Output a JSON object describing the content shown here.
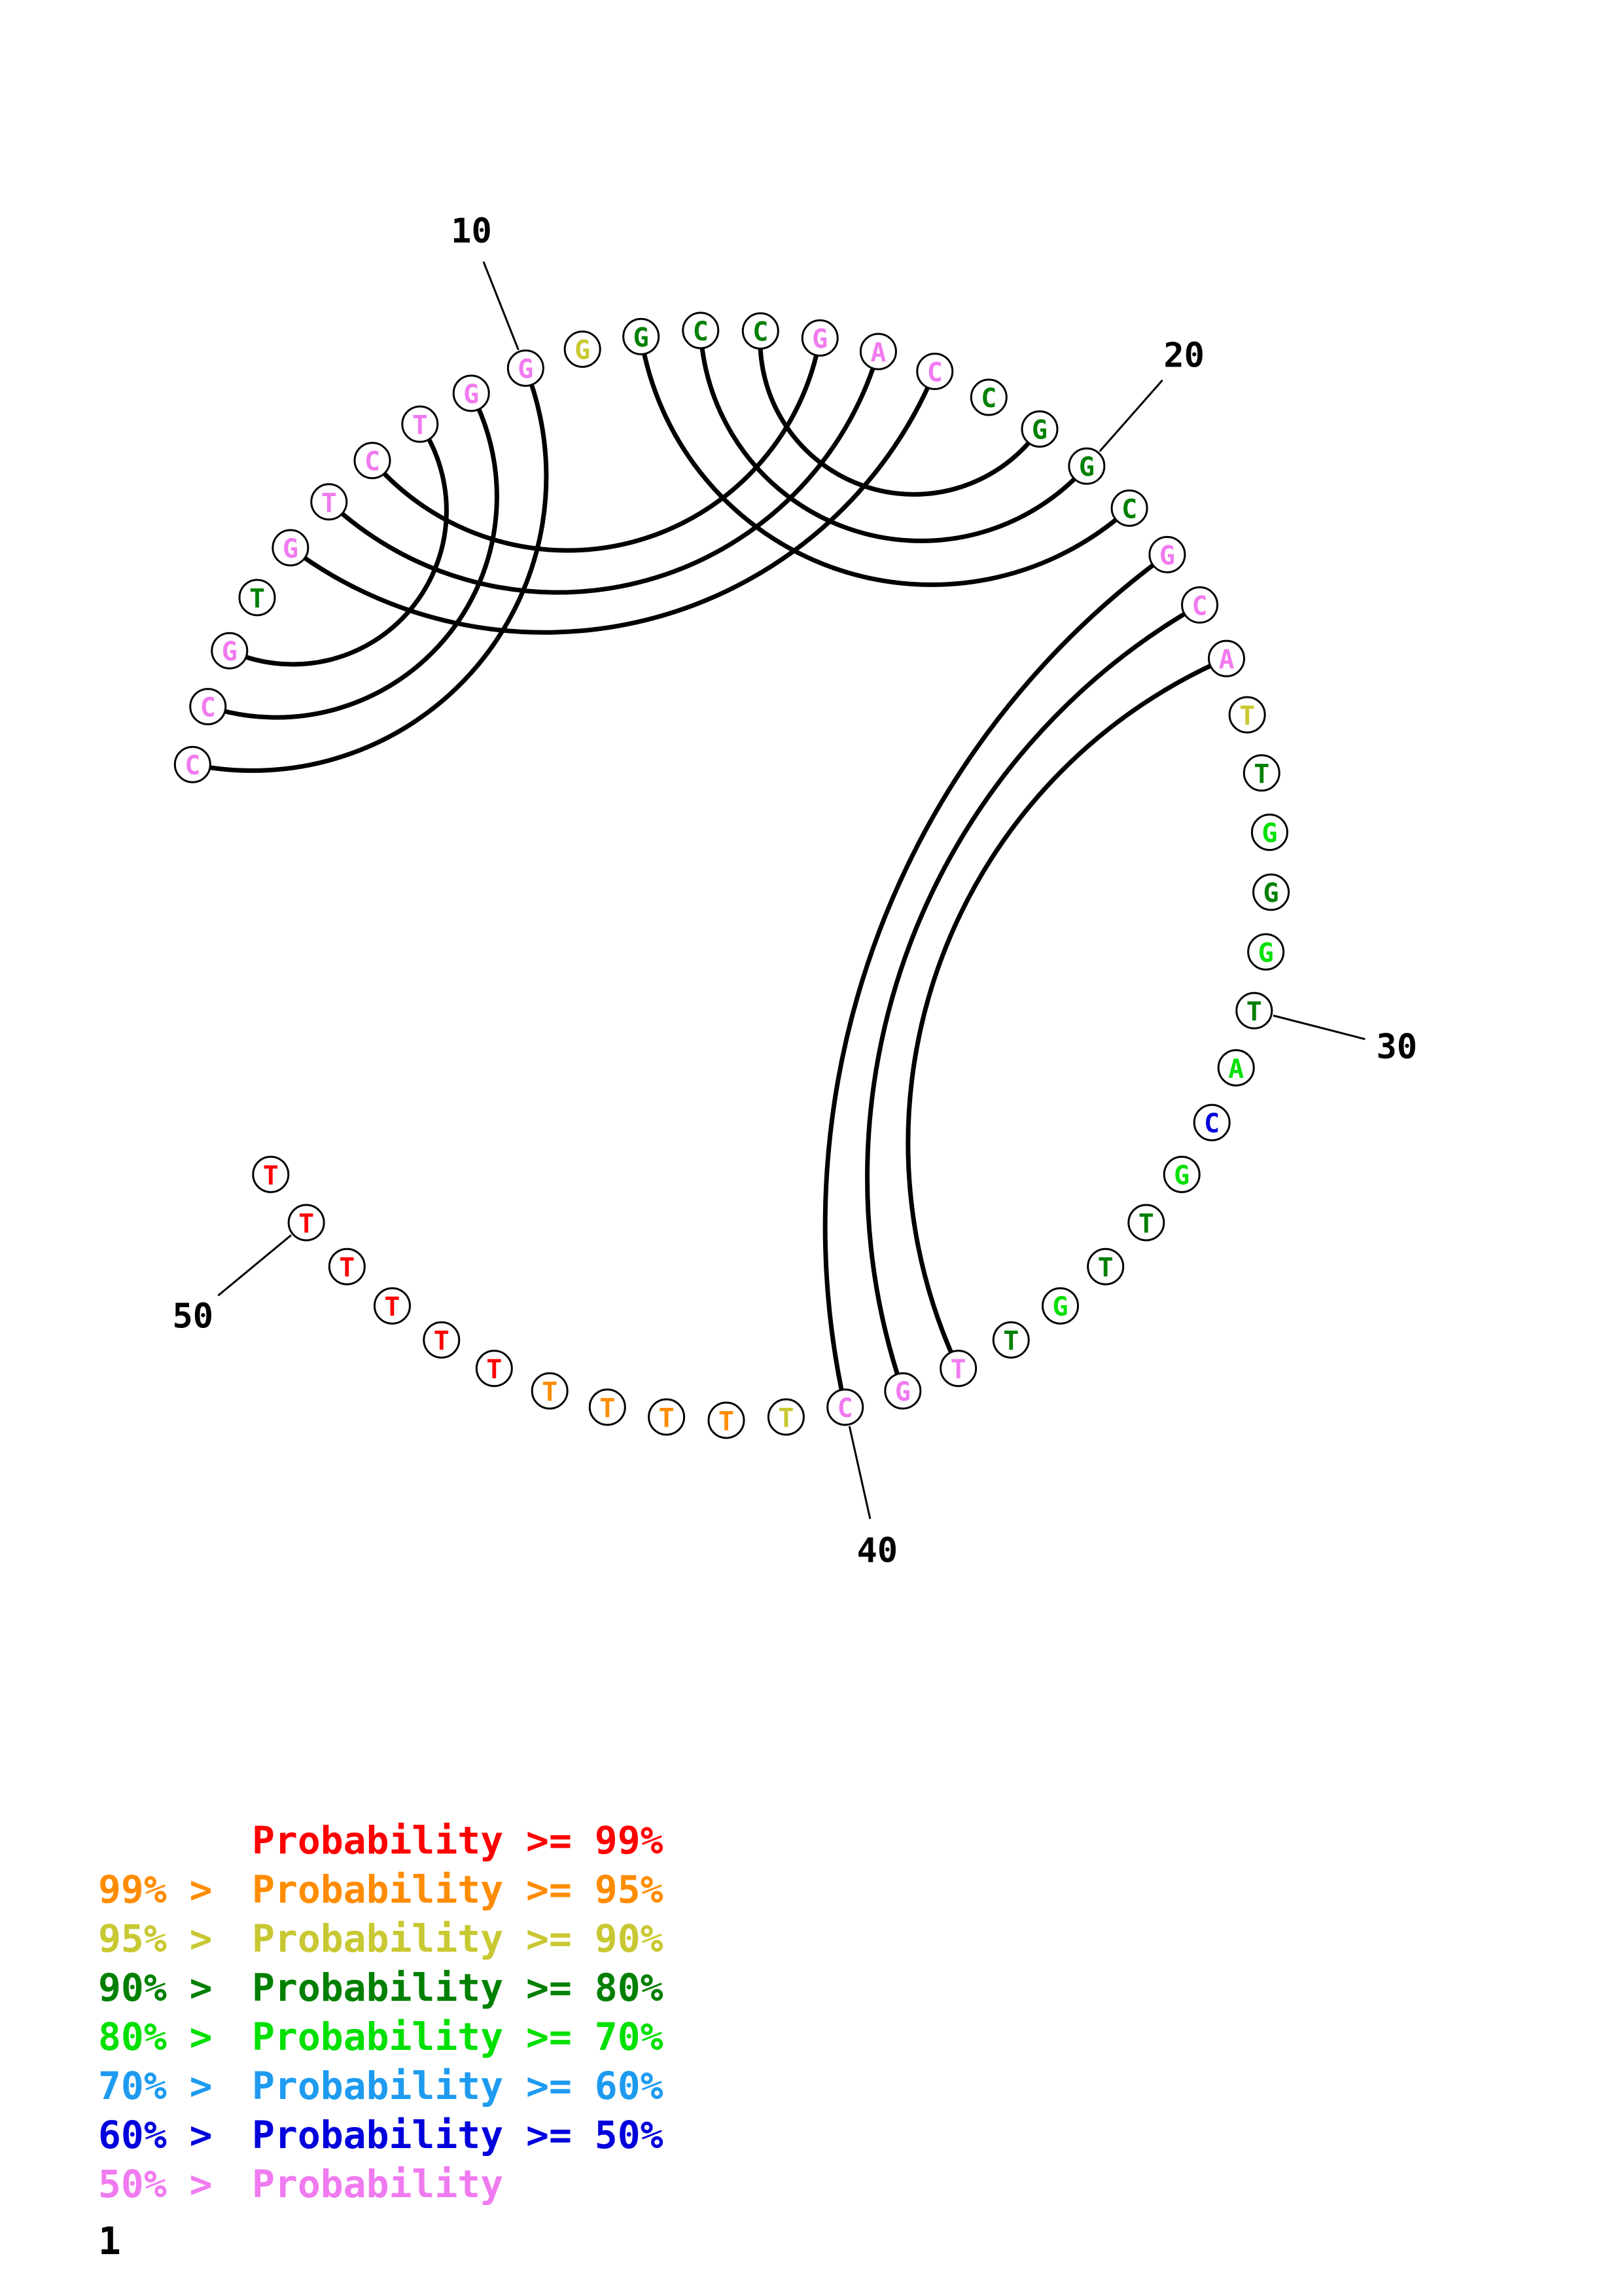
{
  "colors": {
    "p99": "#ff0000",
    "p95": "#ff8c00",
    "p90": "#c8c832",
    "p80": "#008000",
    "p70": "#00e000",
    "p60": "#1e9bf0",
    "p50": "#0000dc",
    "plow": "#f07af0"
  },
  "sequence": [
    {
      "n": 1,
      "base": "C",
      "color": "plow"
    },
    {
      "n": 2,
      "base": "C",
      "color": "plow"
    },
    {
      "n": 3,
      "base": "G",
      "color": "plow"
    },
    {
      "n": 4,
      "base": "T",
      "color": "p80"
    },
    {
      "n": 5,
      "base": "G",
      "color": "plow"
    },
    {
      "n": 6,
      "base": "T",
      "color": "plow"
    },
    {
      "n": 7,
      "base": "C",
      "color": "plow"
    },
    {
      "n": 8,
      "base": "T",
      "color": "plow"
    },
    {
      "n": 9,
      "base": "G",
      "color": "plow"
    },
    {
      "n": 10,
      "base": "G",
      "color": "plow"
    },
    {
      "n": 11,
      "base": "G",
      "color": "p90"
    },
    {
      "n": 12,
      "base": "G",
      "color": "p80"
    },
    {
      "n": 13,
      "base": "C",
      "color": "p80"
    },
    {
      "n": 14,
      "base": "C",
      "color": "p80"
    },
    {
      "n": 15,
      "base": "G",
      "color": "plow"
    },
    {
      "n": 16,
      "base": "A",
      "color": "plow"
    },
    {
      "n": 17,
      "base": "C",
      "color": "plow"
    },
    {
      "n": 18,
      "base": "C",
      "color": "p80"
    },
    {
      "n": 19,
      "base": "G",
      "color": "p80"
    },
    {
      "n": 20,
      "base": "G",
      "color": "p80"
    },
    {
      "n": 21,
      "base": "C",
      "color": "p80"
    },
    {
      "n": 22,
      "base": "G",
      "color": "plow"
    },
    {
      "n": 23,
      "base": "C",
      "color": "plow"
    },
    {
      "n": 24,
      "base": "A",
      "color": "plow"
    },
    {
      "n": 25,
      "base": "T",
      "color": "p90"
    },
    {
      "n": 26,
      "base": "T",
      "color": "p80"
    },
    {
      "n": 27,
      "base": "G",
      "color": "p70"
    },
    {
      "n": 28,
      "base": "G",
      "color": "p80"
    },
    {
      "n": 29,
      "base": "G",
      "color": "p70"
    },
    {
      "n": 30,
      "base": "T",
      "color": "p80"
    },
    {
      "n": 31,
      "base": "A",
      "color": "p70"
    },
    {
      "n": 32,
      "base": "C",
      "color": "p50"
    },
    {
      "n": 33,
      "base": "G",
      "color": "p70"
    },
    {
      "n": 34,
      "base": "T",
      "color": "p80"
    },
    {
      "n": 35,
      "base": "T",
      "color": "p80"
    },
    {
      "n": 36,
      "base": "G",
      "color": "p70"
    },
    {
      "n": 37,
      "base": "T",
      "color": "p80"
    },
    {
      "n": 38,
      "base": "T",
      "color": "plow"
    },
    {
      "n": 39,
      "base": "G",
      "color": "plow"
    },
    {
      "n": 40,
      "base": "C",
      "color": "plow"
    },
    {
      "n": 41,
      "base": "T",
      "color": "p90"
    },
    {
      "n": 42,
      "base": "T",
      "color": "p95"
    },
    {
      "n": 43,
      "base": "T",
      "color": "p95"
    },
    {
      "n": 44,
      "base": "T",
      "color": "p95"
    },
    {
      "n": 45,
      "base": "T",
      "color": "p95"
    },
    {
      "n": 46,
      "base": "T",
      "color": "p99"
    },
    {
      "n": 47,
      "base": "T",
      "color": "p99"
    },
    {
      "n": 48,
      "base": "T",
      "color": "p99"
    },
    {
      "n": 49,
      "base": "T",
      "color": "p99"
    },
    {
      "n": 50,
      "base": "T",
      "color": "p99"
    },
    {
      "n": 51,
      "base": "T",
      "color": "p99"
    }
  ],
  "pairs": [
    [
      1,
      10
    ],
    [
      2,
      9
    ],
    [
      3,
      8
    ],
    [
      5,
      17
    ],
    [
      6,
      16
    ],
    [
      7,
      15
    ],
    [
      12,
      21
    ],
    [
      13,
      20
    ],
    [
      14,
      19
    ],
    [
      22,
      40
    ],
    [
      23,
      39
    ],
    [
      24,
      38
    ]
  ],
  "position_labels": [
    "10",
    "20",
    "30",
    "40",
    "50"
  ],
  "legend": [
    {
      "prefix": "",
      "text": "Probability >= 99%",
      "color": "p99"
    },
    {
      "prefix": "99% > ",
      "text": "Probability >= 95%",
      "color": "p95"
    },
    {
      "prefix": "95% > ",
      "text": "Probability >= 90%",
      "color": "p90"
    },
    {
      "prefix": "90% > ",
      "text": "Probability >= 80%",
      "color": "p80"
    },
    {
      "prefix": "80% > ",
      "text": "Probability >= 70%",
      "color": "p70"
    },
    {
      "prefix": "70% > ",
      "text": "Probability >= 60%",
      "color": "p60"
    },
    {
      "prefix": "60% > ",
      "text": "Probability >= 50%",
      "color": "p50"
    },
    {
      "prefix": "50% > ",
      "text": "Probability",
      "color": "plow"
    }
  ],
  "page_number": "1"
}
